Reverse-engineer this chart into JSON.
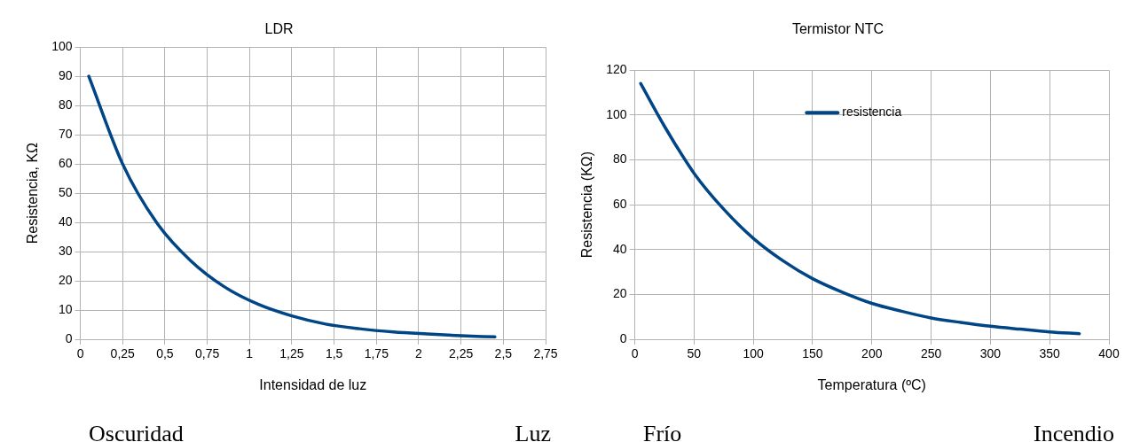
{
  "chart_data": [
    {
      "type": "line",
      "title": "LDR",
      "xlabel": "Intensidad de luz",
      "ylabel": "Resistencia, KΩ",
      "xlim": [
        0,
        2.75
      ],
      "ylim": [
        0,
        100
      ],
      "xticks": [
        0,
        {
          "value": 0.25,
          "label": "0,25"
        },
        {
          "value": 0.5,
          "label": "0,5"
        },
        {
          "value": 0.75,
          "label": "0,75"
        },
        1,
        {
          "value": 1.25,
          "label": "1,25"
        },
        {
          "value": 1.5,
          "label": "1,5"
        },
        {
          "value": 1.75,
          "label": "1,75"
        },
        2,
        {
          "value": 2.25,
          "label": "2,25"
        },
        {
          "value": 2.5,
          "label": "2,5"
        },
        {
          "value": 2.75,
          "label": "2,75"
        }
      ],
      "yticks": [
        0,
        10,
        20,
        30,
        40,
        50,
        60,
        70,
        80,
        90,
        100
      ],
      "grid": true,
      "legend": false,
      "marker": "none",
      "line_style": "solid",
      "series": [
        {
          "color": "#004586",
          "x": [
            0.05,
            0.25,
            0.45,
            0.65,
            0.85,
            1.05,
            1.25,
            1.45,
            1.65,
            1.85,
            2.05,
            2.25,
            2.45
          ],
          "values": [
            90,
            60,
            40,
            27,
            18,
            12,
            8,
            5.2,
            3.6,
            2.5,
            1.8,
            1.2,
            0.8
          ]
        }
      ],
      "annotations": [
        "Oscuridad",
        "Luz"
      ]
    },
    {
      "type": "line",
      "title": "Termistor NTC",
      "xlabel": "Temperatura (ºC)",
      "ylabel": "Resistencia (KΩ)",
      "xlim": [
        0,
        400
      ],
      "ylim": [
        0,
        120
      ],
      "xticks": [
        0,
        50,
        100,
        150,
        200,
        250,
        300,
        350,
        400
      ],
      "yticks": [
        0,
        20,
        40,
        60,
        80,
        100,
        120
      ],
      "grid": true,
      "legend": "top",
      "marker": "none",
      "line_style": "solid",
      "series": [
        {
          "name": "resistencia",
          "color": "#004586",
          "x": [
            5,
            25,
            50,
            75,
            100,
            125,
            150,
            175,
            200,
            225,
            250,
            275,
            300,
            325,
            350,
            375
          ],
          "values": [
            114,
            95,
            74,
            58,
            45,
            35,
            27,
            21,
            16,
            12.5,
            9.5,
            7.5,
            5.8,
            4.5,
            3.3,
            2.5
          ]
        }
      ],
      "annotations": [
        "Frío",
        "Incendio"
      ]
    }
  ]
}
